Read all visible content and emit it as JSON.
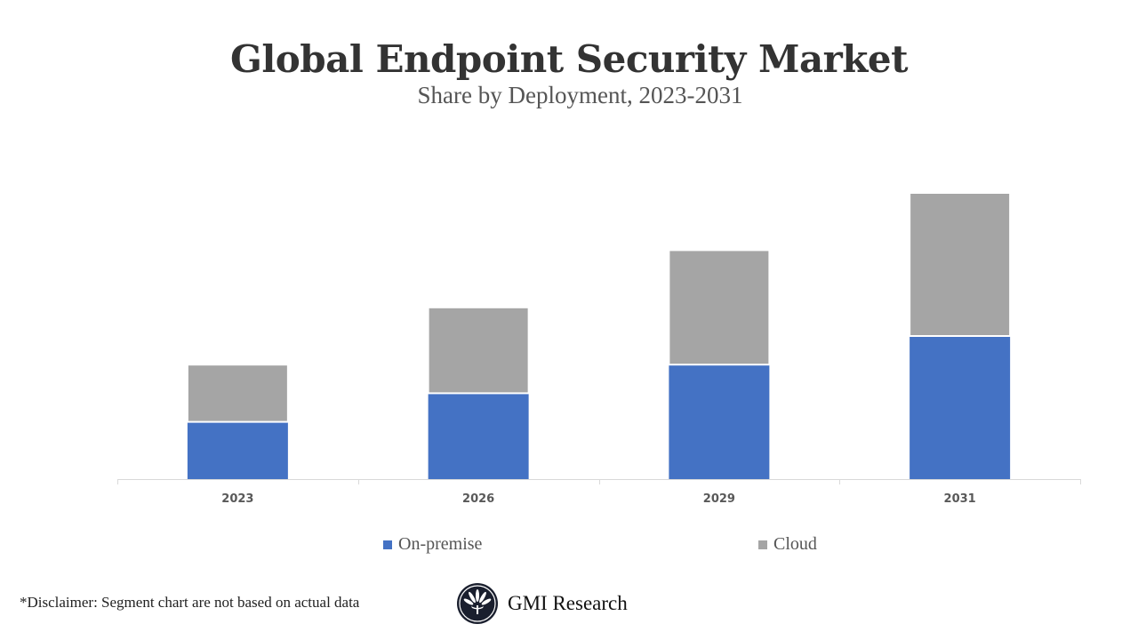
{
  "chart_data": {
    "type": "bar",
    "stacked": true,
    "title": "Global Endpoint Security Market",
    "subtitle": "Share by Deployment, 2023-2031",
    "categories": [
      "2023",
      "2026",
      "2029",
      "2031"
    ],
    "series": [
      {
        "name": "On-premise",
        "values": [
          2,
          3,
          4,
          5
        ],
        "color": "#4472c4"
      },
      {
        "name": "Cloud",
        "values": [
          2,
          3,
          4,
          5
        ],
        "color": "#a5a5a5"
      }
    ],
    "xlabel": "",
    "ylabel": "",
    "ylim": [
      0,
      10
    ],
    "grid": false,
    "y_axis_shown": false,
    "legend_position": "bottom"
  },
  "footer": {
    "disclaimer": "*Disclaimer:  Segment chart are not based on actual data",
    "logo_text": "GMI Research"
  }
}
